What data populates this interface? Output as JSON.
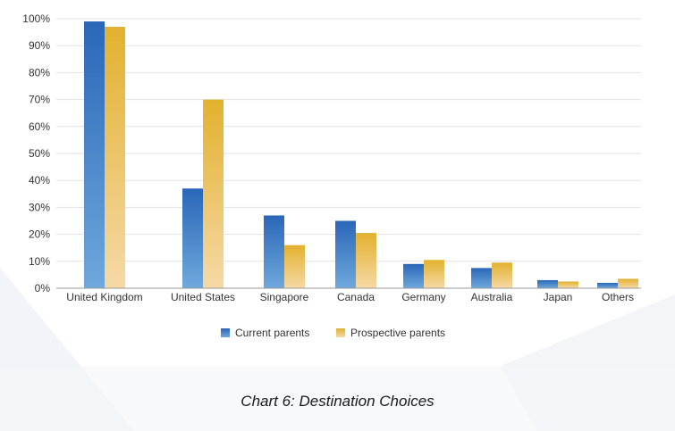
{
  "chart_data": {
    "type": "bar",
    "title": "Chart 6: Destination Choices",
    "xlabel": "",
    "ylabel": "",
    "ylim": [
      0,
      100
    ],
    "y_ticks": [
      "0%",
      "10%",
      "20%",
      "30%",
      "40%",
      "50%",
      "60%",
      "70%",
      "80%",
      "90%",
      "100%"
    ],
    "grid": true,
    "legend_position": "bottom-center",
    "categories": [
      "United Kingdom",
      "United States",
      "Singapore",
      "Canada",
      "Germany",
      "Australia",
      "Japan",
      "Others"
    ],
    "series": [
      {
        "name": "Current parents",
        "color": "#2e6fbf",
        "values": [
          99,
          37,
          27,
          25,
          9,
          7.5,
          3,
          2
        ]
      },
      {
        "name": "Prospective parents",
        "color": "#e3b53a",
        "values": [
          97,
          70,
          16,
          20.5,
          10.5,
          9.5,
          2.5,
          3.5
        ]
      }
    ]
  }
}
